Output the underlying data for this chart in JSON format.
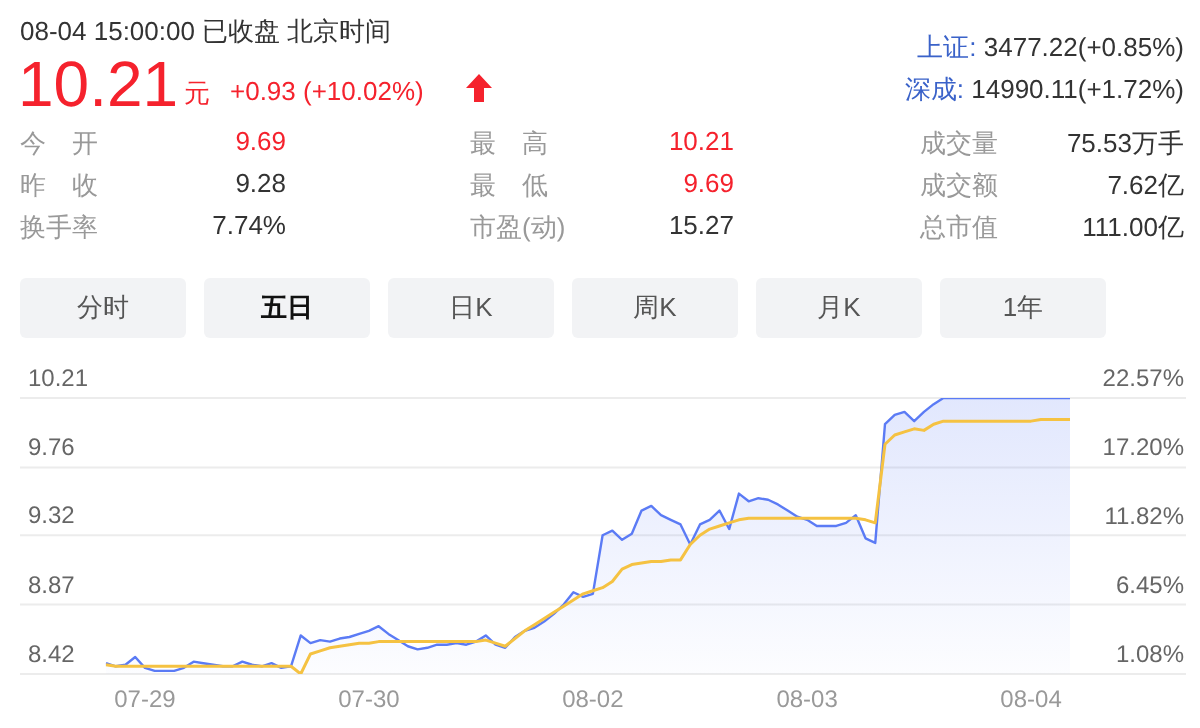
{
  "chart_data": {
    "type": "line",
    "title": "08-04 15:00:00  已收盘  北京时间",
    "annotations": [
      "10.21",
      "元",
      "+0.93 (+10.02%)",
      "上证:",
      "3477.22(+0.85%)",
      "深成:",
      "14990.11(+1.72%)",
      "今　开",
      "9.69",
      "最　高",
      "10.21",
      "成交量",
      "75.53万手",
      "昨　收",
      "9.28",
      "最　低",
      "9.69",
      "成交额",
      "7.62亿",
      "换手率",
      "7.74%",
      "市盈(动)",
      "15.27",
      "总市值",
      "111.00亿",
      "分时",
      "五日",
      "日K",
      "周K",
      "月K",
      "1年"
    ],
    "categories": [
      null,
      null,
      null,
      null,
      "07-29",
      null,
      null,
      null,
      null,
      null,
      null,
      null,
      null,
      null,
      null,
      null,
      null,
      null,
      null,
      null,
      null,
      null,
      null,
      null,
      null,
      null,
      null,
      "07-30",
      null,
      null,
      null,
      null,
      null,
      null,
      null,
      null,
      null,
      null,
      null,
      null,
      null,
      null,
      null,
      null,
      null,
      null,
      null,
      null,
      null,
      null,
      "08-02",
      null,
      null,
      null,
      null,
      null,
      null,
      null,
      null,
      null,
      null,
      null,
      null,
      null,
      null,
      null,
      null,
      null,
      null,
      null,
      null,
      null,
      "08-03",
      null,
      null,
      null,
      null,
      null,
      null,
      null,
      null,
      null,
      null,
      null,
      null,
      null,
      null,
      null,
      null,
      null,
      null,
      null,
      null,
      null,
      null,
      "08-04",
      null,
      null,
      null,
      null
    ],
    "series": [
      {
        "type": "area",
        "color": "#5b7bf5",
        "values": [
          8.49,
          8.47,
          8.48,
          8.53,
          8.46,
          8.44,
          8.44,
          8.44,
          8.46,
          8.5,
          8.49,
          8.48,
          8.47,
          8.47,
          8.5,
          8.48,
          8.47,
          8.49,
          8.46,
          8.47,
          8.67,
          8.62,
          8.64,
          8.63,
          8.65,
          8.66,
          8.68,
          8.7,
          8.73,
          8.68,
          8.64,
          8.6,
          8.58,
          8.59,
          8.61,
          8.61,
          8.62,
          8.61,
          8.63,
          8.67,
          8.61,
          8.59,
          8.66,
          8.7,
          8.72,
          8.76,
          8.81,
          8.87,
          8.95,
          8.92,
          8.94,
          9.32,
          9.35,
          9.29,
          9.33,
          9.48,
          9.51,
          9.45,
          9.42,
          9.39,
          9.26,
          9.39,
          9.42,
          9.48,
          9.36,
          9.59,
          9.54,
          9.56,
          9.55,
          9.52,
          9.48,
          9.44,
          9.42,
          9.38,
          9.38,
          9.38,
          9.4,
          9.45,
          9.3,
          9.27,
          10.04,
          10.1,
          10.12,
          10.06,
          10.12,
          10.17,
          10.21,
          10.21,
          10.21,
          10.21,
          10.21,
          10.21,
          10.21,
          10.21,
          10.21,
          10.21,
          10.21,
          10.21,
          10.21,
          10.21
        ]
      },
      {
        "type": "line",
        "color": "#f5c242",
        "values": [
          8.48,
          8.47,
          8.47,
          8.47,
          8.47,
          8.47,
          8.47,
          8.47,
          8.47,
          8.47,
          8.47,
          8.47,
          8.47,
          8.47,
          8.47,
          8.47,
          8.47,
          8.47,
          8.47,
          8.47,
          8.42,
          8.55,
          8.57,
          8.59,
          8.6,
          8.61,
          8.62,
          8.62,
          8.63,
          8.63,
          8.63,
          8.63,
          8.63,
          8.63,
          8.63,
          8.63,
          8.63,
          8.63,
          8.63,
          8.64,
          8.62,
          8.6,
          8.65,
          8.7,
          8.74,
          8.78,
          8.82,
          8.86,
          8.9,
          8.94,
          8.96,
          8.98,
          9.02,
          9.1,
          9.13,
          9.14,
          9.15,
          9.15,
          9.16,
          9.16,
          9.26,
          9.32,
          9.36,
          9.38,
          9.4,
          9.42,
          9.43,
          9.43,
          9.43,
          9.43,
          9.43,
          9.43,
          9.43,
          9.43,
          9.43,
          9.43,
          9.43,
          9.43,
          9.42,
          9.4,
          9.91,
          9.97,
          9.99,
          10.01,
          10.0,
          10.04,
          10.06,
          10.06,
          10.06,
          10.06,
          10.06,
          10.06,
          10.06,
          10.06,
          10.06,
          10.06,
          10.07,
          10.07,
          10.07,
          10.07
        ]
      }
    ],
    "ylim": [
      8.42,
      10.21
    ],
    "yticks": [
      8.42,
      8.87,
      9.32,
      9.76,
      10.21
    ],
    "y2lim": [
      1.08,
      22.57
    ],
    "y2ticks": [
      {
        "value": 1.08,
        "label": "1.08%"
      },
      {
        "value": 6.45,
        "label": "6.45%"
      },
      {
        "value": 11.82,
        "label": "11.82%"
      },
      {
        "value": 17.2,
        "label": "17.20%"
      },
      {
        "value": 22.57,
        "label": "22.57%"
      }
    ],
    "grid": "y",
    "marker": "none"
  }
}
